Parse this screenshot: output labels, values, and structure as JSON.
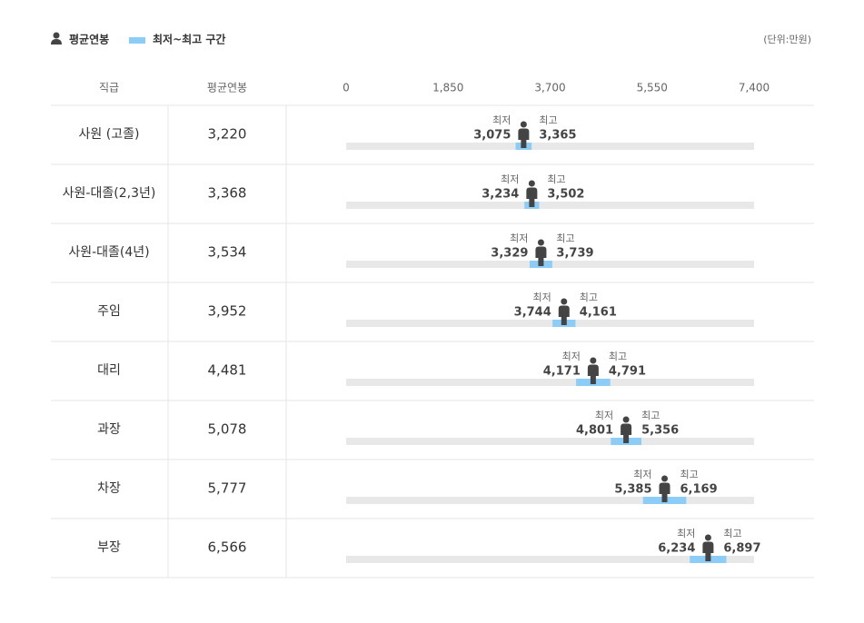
{
  "chart_data": {
    "type": "range",
    "legend": {
      "average": "평균연봉",
      "range": "최저~최고 구간"
    },
    "unit": "(단위:만원)",
    "columns": [
      "직급",
      "평균연봉"
    ],
    "min_label": "최저",
    "max_label": "최고",
    "categories": [
      "사원 (고졸)",
      "사원-대졸(2,3년)",
      "사원-대졸(4년)",
      "주임",
      "대리",
      "과장",
      "차장",
      "부장"
    ],
    "xlim": [
      0,
      7400
    ],
    "xticks": [
      0,
      {
        "value": 1850,
        "label": "1,850"
      },
      {
        "value": 3700,
        "label": "3,700"
      },
      {
        "value": 5550,
        "label": "5,550"
      },
      {
        "value": 7400,
        "label": "7,400"
      }
    ],
    "series": [
      {
        "name": "평균연봉",
        "color": "#444444",
        "values": [
          3220,
          3368,
          3534,
          3952,
          4481,
          5078,
          5777,
          6566
        ],
        "value_labels": [
          "3,220",
          "3,368",
          "3,534",
          "3,952",
          "4,481",
          "5,078",
          "5,777",
          "6,566"
        ]
      },
      {
        "name": "최저",
        "color": "#8ccdf7",
        "values": [
          3075,
          3234,
          3329,
          3744,
          4171,
          4801,
          5385,
          6234
        ],
        "value_labels": [
          "3,075",
          "3,234",
          "3,329",
          "3,744",
          "4,171",
          "4,801",
          "5,385",
          "6,234"
        ]
      },
      {
        "name": "최고",
        "color": "#8ccdf7",
        "values": [
          3365,
          3502,
          3739,
          4161,
          4791,
          5356,
          6169,
          6897
        ],
        "value_labels": [
          "3,365",
          "3,502",
          "3,739",
          "4,161",
          "4,791",
          "5,356",
          "6,169",
          "6,897"
        ]
      }
    ]
  }
}
